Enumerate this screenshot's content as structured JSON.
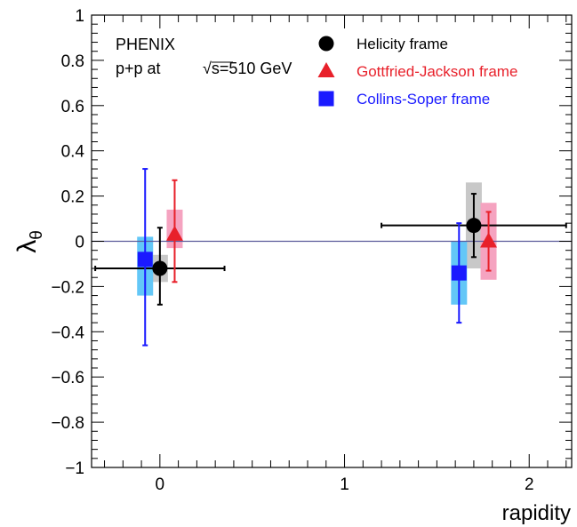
{
  "chart_data": {
    "type": "scatter",
    "xlabel": "rapidity",
    "ylabel": "λθ",
    "xlim": [
      -0.37,
      2.23
    ],
    "ylim": [
      -1,
      1
    ],
    "x_ticks": [
      "0",
      "1",
      "2"
    ],
    "y_ticks": [
      "−1",
      "−0.8",
      "−0.6",
      "−0.4",
      "−0.2",
      "0",
      "0.2",
      "0.4",
      "0.6",
      "0.8",
      "1"
    ],
    "reference_line_y": 0,
    "experiment_text": [
      "PHENIX",
      "p+p at",
      "√s=510 GeV"
    ],
    "legend_position": "top-right",
    "series": [
      {
        "name": "Helicity frame",
        "marker": "circle",
        "color": "#000000",
        "syst_color": "#c8c8c8",
        "points": [
          {
            "x": 0.0,
            "y": -0.12,
            "xerr_lo": 0.35,
            "xerr_hi": 0.35,
            "yerr_lo": 0.16,
            "yerr_hi": 0.18,
            "syst_lo": 0.06,
            "syst_hi": 0.06
          },
          {
            "x": 1.7,
            "y": 0.07,
            "xerr_lo": 0.5,
            "xerr_hi": 0.5,
            "yerr_lo": 0.14,
            "yerr_hi": 0.14,
            "syst_lo": 0.19,
            "syst_hi": 0.19
          }
        ]
      },
      {
        "name": "Gottfried-Jackson frame",
        "marker": "triangle",
        "color": "#e8202a",
        "syst_color": "#f5a3c0",
        "points": [
          {
            "x": 0.08,
            "y": 0.03,
            "yerr_lo": 0.21,
            "yerr_hi": 0.24,
            "syst_lo": 0.06,
            "syst_hi": 0.11
          },
          {
            "x": 1.78,
            "y": 0.0,
            "yerr_lo": 0.13,
            "yerr_hi": 0.13,
            "syst_lo": 0.17,
            "syst_hi": 0.17
          }
        ]
      },
      {
        "name": "Collins-Soper frame",
        "marker": "square",
        "color": "#1a1aff",
        "syst_color": "#63c7f7",
        "points": [
          {
            "x": -0.08,
            "y": -0.08,
            "yerr_lo": 0.38,
            "yerr_hi": 0.4,
            "syst_lo": 0.16,
            "syst_hi": 0.1
          },
          {
            "x": 1.62,
            "y": -0.14,
            "yerr_lo": 0.22,
            "yerr_hi": 0.22,
            "syst_lo": 0.14,
            "syst_hi": 0.14
          }
        ]
      }
    ]
  }
}
